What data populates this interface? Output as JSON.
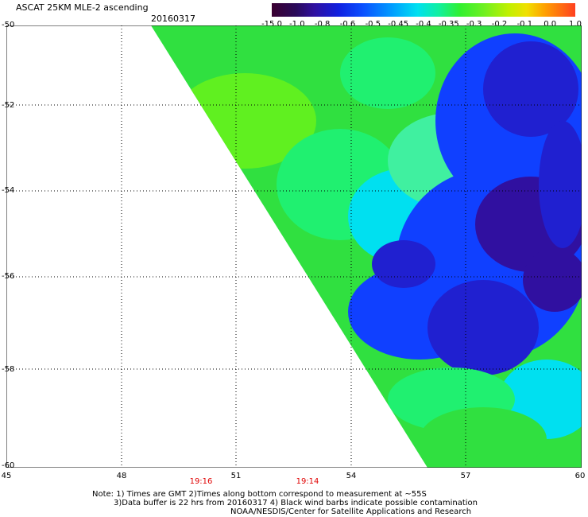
{
  "title_line1": "ASCAT 25KM MLE-2 ascending",
  "title_line2": "20160317",
  "colorbar": {
    "ticks": [
      "-15.0",
      "-1.0",
      "-0.8",
      "-0.6",
      "-0.5",
      "-0.45",
      "-0.4",
      "-0.35",
      "-0.3",
      "-0.2",
      "-0.1",
      "0.0",
      "1.0"
    ]
  },
  "axes": {
    "x_ticks": [
      "45",
      "48",
      "51",
      "54",
      "57",
      "60"
    ],
    "y_ticks": [
      "-50",
      "-52",
      "-54",
      "-56",
      "-58",
      "-60"
    ]
  },
  "times": [
    "19:16",
    "19:14"
  ],
  "notes": [
    "Note: 1) Times are GMT 2)Times along bottom correspond to measurement at ~55S",
    "3)Data buffer is 22 hrs from 20160317 4) Black wind barbs indicate possible contamination",
    "NOAA/NESDIS/Center for Satellite Applications and Research"
  ],
  "map_data": {
    "lon_range": [
      45,
      60
    ],
    "lat_range": [
      -60,
      -50
    ],
    "palette": [
      "#30e040",
      "#20f070",
      "#40f0a0",
      "#00e0f0",
      "#1040ff",
      "#2020d0",
      "#3010a0"
    ]
  }
}
